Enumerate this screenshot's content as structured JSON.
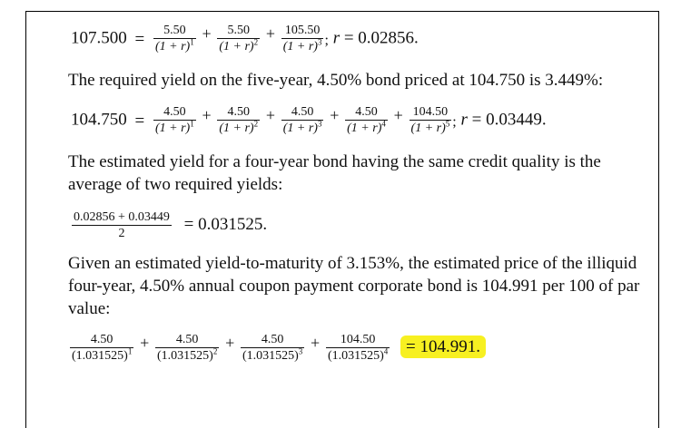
{
  "eq1": {
    "lhs": "107.500",
    "eq": "=",
    "terms": [
      {
        "num": "5.50",
        "den": "(1 + r)",
        "exp": "1"
      },
      {
        "num": "5.50",
        "den": "(1 + r)",
        "exp": "2"
      },
      {
        "num": "105.50",
        "den": "(1 + r)",
        "exp": "3"
      }
    ],
    "plus": "+",
    "semicolon": ";",
    "var": "r",
    "result": "= 0.02856."
  },
  "para1": "The required yield on the five-year, 4.50% bond priced at 104.750 is 3.449%:",
  "eq2": {
    "lhs": "104.750",
    "eq": "=",
    "terms": [
      {
        "num": "4.50",
        "den": "(1 + r)",
        "exp": "1"
      },
      {
        "num": "4.50",
        "den": "(1 + r)",
        "exp": "2"
      },
      {
        "num": "4.50",
        "den": "(1 + r)",
        "exp": "3"
      },
      {
        "num": "4.50",
        "den": "(1 + r)",
        "exp": "4"
      },
      {
        "num": "104.50",
        "den": "(1 + r)",
        "exp": "5"
      }
    ],
    "plus": "+",
    "semicolon": ";",
    "var": "r",
    "result": "= 0.03449."
  },
  "para2": "The estimated yield for a four-year bond having the same credit quality is the average of two required yields:",
  "eq3": {
    "num": "0.02856 + 0.03449",
    "den": "2",
    "result": "= 0.031525."
  },
  "para3": "Given an estimated yield-to-maturity of 3.153%, the estimated price of the illiquid four-year, 4.50% annual coupon payment corporate bond is 104.991 per 100 of par value:",
  "eq4": {
    "terms": [
      {
        "num": "4.50",
        "den": "(1.031525)",
        "exp": "1"
      },
      {
        "num": "4.50",
        "den": "(1.031525)",
        "exp": "2"
      },
      {
        "num": "4.50",
        "den": "(1.031525)",
        "exp": "3"
      },
      {
        "num": "104.50",
        "den": "(1.031525)",
        "exp": "4"
      }
    ],
    "plus": "+",
    "result": "= 104.991."
  }
}
